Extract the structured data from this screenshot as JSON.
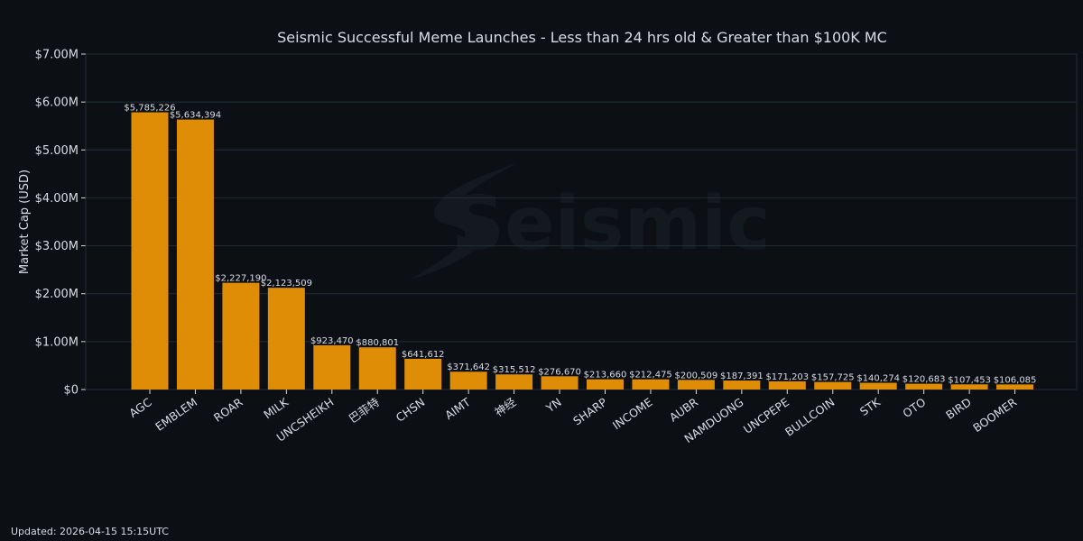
{
  "chart_data": {
    "type": "bar",
    "title": "Seismic Successful Meme Launches - Less than 24 hrs old & Greater than $100K MC",
    "xlabel": "",
    "ylabel": "Market Cap (USD)",
    "ylim": [
      0,
      7000000
    ],
    "y_ticks": [
      "$0",
      "$1.00M",
      "$2.00M",
      "$3.00M",
      "$4.00M",
      "$5.00M",
      "$6.00M",
      "$7.00M"
    ],
    "grid": true,
    "categories": [
      "AGC",
      "EMBLEM",
      "ROAR",
      "MILK",
      "UNCSHEIKH",
      "巴菲特",
      "CHSN",
      "AIMT",
      "神经",
      "YN",
      "SHARP",
      "INCOME",
      "AUBR",
      "NAMDUONG",
      "UNCPEPE",
      "BULLCOIN",
      "STK",
      "OTO",
      "BIRD",
      "BOOMER"
    ],
    "values": [
      5785226,
      5634394,
      2227190,
      2123509,
      923470,
      880801,
      641612,
      371642,
      315512,
      276670,
      213660,
      212475,
      200509,
      187391,
      171203,
      157725,
      140274,
      120683,
      107453,
      106085
    ],
    "value_labels": [
      "$5,785,226",
      "$5,634,394",
      "$2,227,190",
      "$2,123,509",
      "$923,470",
      "$880,801",
      "$641,612",
      "$371,642",
      "$315,512",
      "$276,670",
      "$213,660",
      "$212,475",
      "$200,509",
      "$187,391",
      "$171,203",
      "$157,725",
      "$140,274",
      "$120,683",
      "$107,453",
      "$106,085"
    ],
    "watermark": "Seismic",
    "colors": {
      "background": "#0c0f14",
      "bar": "#df8c06",
      "grid": "#232a3a",
      "text": "#d8dce3"
    }
  },
  "footer": {
    "label": "Updated: ",
    "value": "2026-04-15 15:15UTC"
  }
}
